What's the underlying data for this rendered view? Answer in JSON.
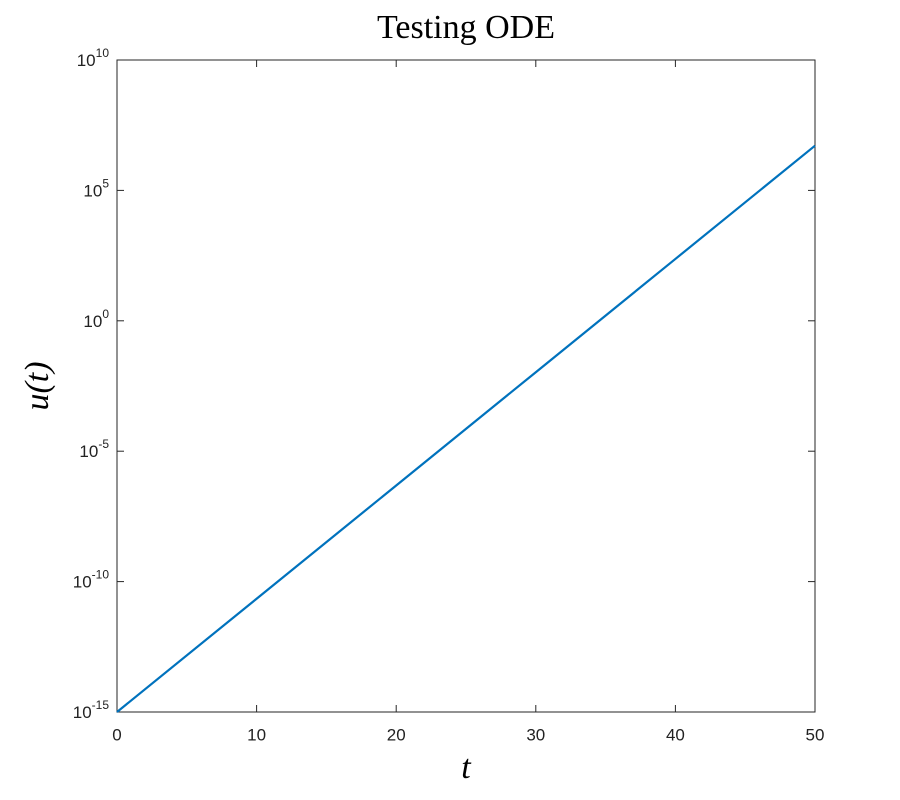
{
  "chart_data": {
    "type": "line",
    "title": "Testing ODE",
    "x_label": "t",
    "y_label": "u(t)",
    "x": [
      0,
      10,
      20,
      30,
      40,
      50
    ],
    "series": [
      {
        "color": "#0072bd",
        "values": [
          1e-15,
          2.2026e-11,
          4.852e-07,
          0.010686,
          235.4,
          5185000
        ]
      }
    ],
    "xlim": [
      0,
      50
    ],
    "xticks": [
      0,
      10,
      20,
      30,
      40,
      50
    ],
    "ylim": [
      1e-15,
      10000000000.0
    ],
    "y_scale": "log",
    "yticks": [
      {
        "value": 1e-15,
        "label": "10^-15"
      },
      {
        "value": 1e-10,
        "label": "10^-10"
      },
      {
        "value": 1e-05,
        "label": "10^-5"
      },
      {
        "value": 1,
        "label": "10^0"
      },
      {
        "value": 100000,
        "label": "10^5"
      },
      {
        "value": 10000000000,
        "label": "10^10"
      }
    ],
    "grid": false
  }
}
